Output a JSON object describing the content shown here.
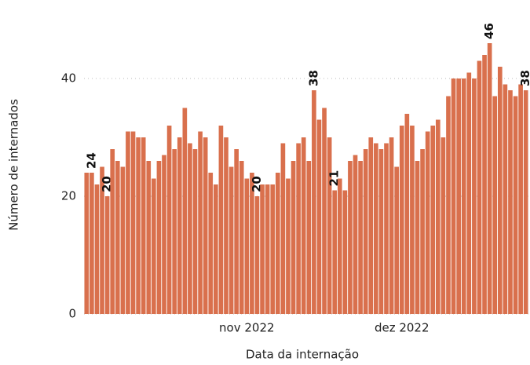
{
  "chart_data": {
    "type": "bar",
    "x_label": "Data da internação",
    "y_label": "Número de internados",
    "color": "#d9704d",
    "ylim": [
      0,
      48
    ],
    "yticks": [
      0,
      20,
      40
    ],
    "grid": true,
    "categories": [
      null,
      null,
      null,
      null,
      null,
      null,
      null,
      null,
      null,
      null,
      null,
      null,
      null,
      null,
      null,
      null,
      null,
      null,
      null,
      null,
      null,
      null,
      null,
      null,
      null,
      null,
      null,
      null,
      null,
      null,
      null,
      "nov 2022",
      null,
      null,
      null,
      null,
      null,
      null,
      null,
      null,
      null,
      null,
      null,
      null,
      null,
      null,
      null,
      null,
      null,
      null,
      null,
      null,
      null,
      null,
      null,
      null,
      null,
      null,
      null,
      null,
      null,
      "dez 2022",
      null,
      null,
      null,
      null,
      null,
      null,
      null,
      null,
      null,
      null,
      null,
      null,
      null,
      null,
      null,
      null,
      null,
      null,
      null,
      null,
      null,
      null,
      null,
      null
    ],
    "values": [
      24,
      24,
      22,
      25,
      20,
      28,
      26,
      25,
      31,
      31,
      30,
      30,
      26,
      23,
      26,
      27,
      32,
      28,
      30,
      35,
      29,
      28,
      31,
      30,
      24,
      22,
      32,
      30,
      25,
      28,
      26,
      23,
      24,
      20,
      22,
      22,
      22,
      24,
      29,
      23,
      26,
      29,
      30,
      26,
      38,
      33,
      35,
      30,
      21,
      23,
      21,
      26,
      27,
      26,
      28,
      30,
      29,
      28,
      29,
      30,
      25,
      32,
      34,
      32,
      26,
      28,
      31,
      32,
      33,
      30,
      37,
      40,
      40,
      40,
      41,
      40,
      43,
      44,
      46,
      37,
      42,
      39,
      38,
      37,
      39,
      38
    ],
    "value_labels": [
      null,
      "24",
      null,
      null,
      "20",
      null,
      null,
      null,
      null,
      null,
      null,
      null,
      null,
      null,
      null,
      null,
      null,
      null,
      null,
      null,
      null,
      null,
      null,
      null,
      null,
      null,
      null,
      null,
      null,
      null,
      null,
      null,
      null,
      "20",
      null,
      null,
      null,
      null,
      null,
      null,
      null,
      null,
      null,
      null,
      "38",
      null,
      null,
      null,
      "21",
      null,
      null,
      null,
      null,
      null,
      null,
      null,
      null,
      null,
      null,
      null,
      null,
      null,
      null,
      null,
      null,
      null,
      null,
      null,
      null,
      null,
      null,
      null,
      null,
      null,
      null,
      null,
      null,
      null,
      "46",
      null,
      null,
      null,
      null,
      null,
      null,
      "38"
    ]
  }
}
